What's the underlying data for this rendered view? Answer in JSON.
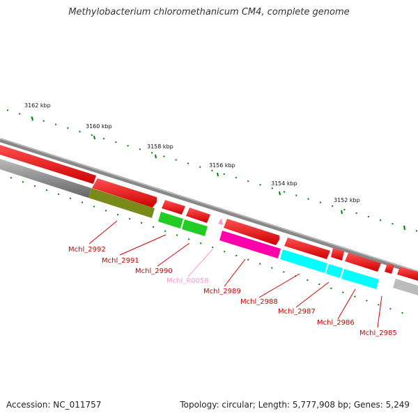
{
  "title": "Methylobacterium chloromethanicum CM4, complete genome",
  "footer": {
    "accession": "Accession: NC_011757",
    "summary": "Topology: circular; Length: 5,777,908 bp; Genes: 5,249"
  },
  "colors": {
    "cds_forward": "#ff0000",
    "pseudo": "#ff00aa",
    "rna": "#ff99cc",
    "cog_green": "#22cc22",
    "cog_cyan": "#00ffff",
    "cog_olive": "#7a8a1a",
    "cog_gray": "#777777",
    "backbone": "#888888",
    "tick": "#008000"
  },
  "ruler": {
    "labels": [
      "3162 kbp",
      "3160 kbp",
      "3158 kbp",
      "3156 kbp",
      "3154 kbp",
      "3152 kbp"
    ]
  },
  "genes": {
    "labels": [
      "Mchl_2992",
      "Mchl_2991",
      "Mchl_2990",
      "Mchl_R0058",
      "Mchl_2989",
      "Mchl_2988",
      "Mchl_2987",
      "Mchl_2986",
      "Mchl_2985"
    ]
  }
}
